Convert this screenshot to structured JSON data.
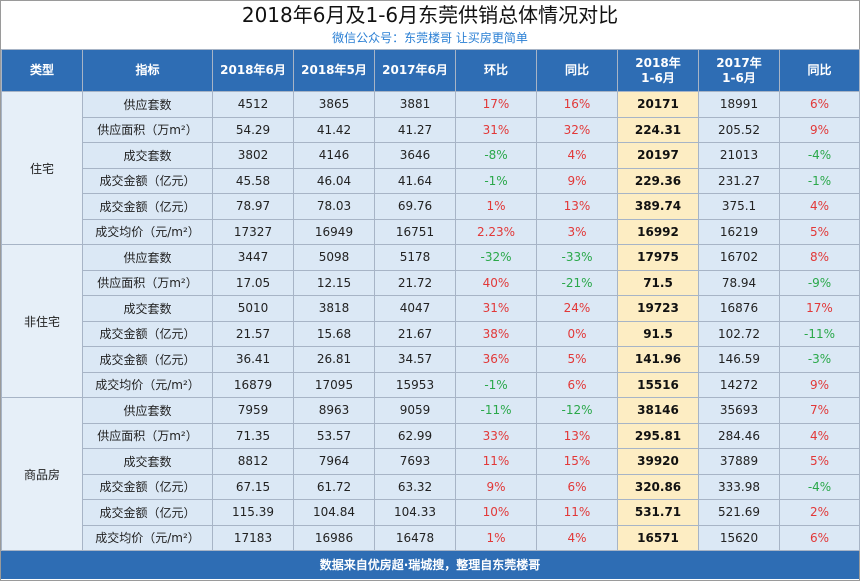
{
  "title": "2018年6月及1-6月东莞供销总体情况对比",
  "subtitle": "微信公众号：东莞楼哥  让买房更简单",
  "colors": {
    "header_bg": "#2e6db4",
    "highlight": "#fdedc3",
    "up": "#e23838",
    "down": "#2aa84a"
  },
  "headers": {
    "type": "类型",
    "indicator": "指标",
    "jun2018": "2018年6月",
    "may2018": "2018年5月",
    "jun2017": "2017年6月",
    "mom": "环比",
    "yoy": "同比",
    "h1_2018_year": "2018年",
    "h1_2018_range": "1-6月",
    "h1_2017_year": "2017年",
    "h1_2017_range": "1-6月",
    "yoy2": "同比"
  },
  "groups": [
    {
      "type": "住宅",
      "rows": [
        {
          "ind": "供应套数",
          "c1": "4512",
          "c2": "3865",
          "c3": "3881",
          "mom": "17%",
          "yoy": "16%",
          "h18": "20171",
          "h17": "18991",
          "yoy2": "6%"
        },
        {
          "ind": "供应面积（万m²）",
          "c1": "54.29",
          "c2": "41.42",
          "c3": "41.27",
          "mom": "31%",
          "yoy": "32%",
          "h18": "224.31",
          "h17": "205.52",
          "yoy2": "9%"
        },
        {
          "ind": "成交套数",
          "c1": "3802",
          "c2": "4146",
          "c3": "3646",
          "mom": "-8%",
          "yoy": "4%",
          "h18": "20197",
          "h17": "21013",
          "yoy2": "-4%"
        },
        {
          "ind": "成交金额（亿元）",
          "c1": "45.58",
          "c2": "46.04",
          "c3": "41.64",
          "mom": "-1%",
          "yoy": "9%",
          "h18": "229.36",
          "h17": "231.27",
          "yoy2": "-1%"
        },
        {
          "ind": "成交金额（亿元）",
          "c1": "78.97",
          "c2": "78.03",
          "c3": "69.76",
          "mom": "1%",
          "yoy": "13%",
          "h18": "389.74",
          "h17": "375.1",
          "yoy2": "4%"
        },
        {
          "ind": "成交均价（元/m²）",
          "c1": "17327",
          "c2": "16949",
          "c3": "16751",
          "mom": "2.23%",
          "yoy": "3%",
          "h18": "16992",
          "h17": "16219",
          "yoy2": "5%"
        }
      ]
    },
    {
      "type": "非住宅",
      "rows": [
        {
          "ind": "供应套数",
          "c1": "3447",
          "c2": "5098",
          "c3": "5178",
          "mom": "-32%",
          "yoy": "-33%",
          "h18": "17975",
          "h17": "16702",
          "yoy2": "8%"
        },
        {
          "ind": "供应面积（万m²）",
          "c1": "17.05",
          "c2": "12.15",
          "c3": "21.72",
          "mom": "40%",
          "yoy": "-21%",
          "h18": "71.5",
          "h17": "78.94",
          "yoy2": "-9%"
        },
        {
          "ind": "成交套数",
          "c1": "5010",
          "c2": "3818",
          "c3": "4047",
          "mom": "31%",
          "yoy": "24%",
          "h18": "19723",
          "h17": "16876",
          "yoy2": "17%"
        },
        {
          "ind": "成交金额（亿元）",
          "c1": "21.57",
          "c2": "15.68",
          "c3": "21.67",
          "mom": "38%",
          "yoy": "0%",
          "h18": "91.5",
          "h17": "102.72",
          "yoy2": "-11%"
        },
        {
          "ind": "成交金额（亿元）",
          "c1": "36.41",
          "c2": "26.81",
          "c3": "34.57",
          "mom": "36%",
          "yoy": "5%",
          "h18": "141.96",
          "h17": "146.59",
          "yoy2": "-3%"
        },
        {
          "ind": "成交均价（元/m²）",
          "c1": "16879",
          "c2": "17095",
          "c3": "15953",
          "mom": "-1%",
          "yoy": "6%",
          "h18": "15516",
          "h17": "14272",
          "yoy2": "9%"
        }
      ]
    },
    {
      "type": "商品房",
      "rows": [
        {
          "ind": "供应套数",
          "c1": "7959",
          "c2": "8963",
          "c3": "9059",
          "mom": "-11%",
          "yoy": "-12%",
          "h18": "38146",
          "h17": "35693",
          "yoy2": "7%"
        },
        {
          "ind": "供应面积（万m²）",
          "c1": "71.35",
          "c2": "53.57",
          "c3": "62.99",
          "mom": "33%",
          "yoy": "13%",
          "h18": "295.81",
          "h17": "284.46",
          "yoy2": "4%"
        },
        {
          "ind": "成交套数",
          "c1": "8812",
          "c2": "7964",
          "c3": "7693",
          "mom": "11%",
          "yoy": "15%",
          "h18": "39920",
          "h17": "37889",
          "yoy2": "5%"
        },
        {
          "ind": "成交金额（亿元）",
          "c1": "67.15",
          "c2": "61.72",
          "c3": "63.32",
          "mom": "9%",
          "yoy": "6%",
          "h18": "320.86",
          "h17": "333.98",
          "yoy2": "-4%"
        },
        {
          "ind": "成交金额（亿元）",
          "c1": "115.39",
          "c2": "104.84",
          "c3": "104.33",
          "mom": "10%",
          "yoy": "11%",
          "h18": "531.71",
          "h17": "521.69",
          "yoy2": "2%"
        },
        {
          "ind": "成交均价（元/m²）",
          "c1": "17183",
          "c2": "16986",
          "c3": "16478",
          "mom": "1%",
          "yoy": "4%",
          "h18": "16571",
          "h17": "15620",
          "yoy2": "6%"
        }
      ]
    }
  ],
  "footer": "数据来自优房超·瑞城搜，整理自东莞楼哥"
}
